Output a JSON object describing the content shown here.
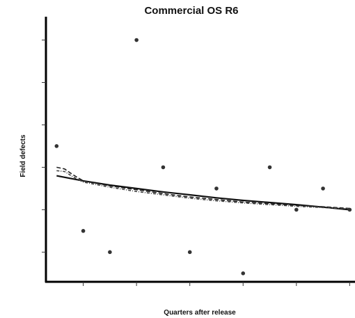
{
  "chart_data": {
    "type": "scatter",
    "title": "Commercial OS R6",
    "xlabel": "Quarters after release",
    "ylabel": "Field defects",
    "xlim": [
      0.6,
      12.2
    ],
    "ylim": [
      0.3,
      6.55
    ],
    "grid": false,
    "tick_labels_shown": false,
    "x_ticks": [
      2,
      4,
      6,
      8,
      10,
      12
    ],
    "y_ticks": [
      1,
      2,
      3,
      4,
      5,
      6
    ],
    "series": [
      {
        "kind": "points",
        "x": [
          1,
          2,
          3,
          4,
          5,
          6,
          7,
          8,
          9,
          10,
          11,
          12
        ],
        "y": [
          3.5,
          1.5,
          1.0,
          6.0,
          3.0,
          1.0,
          2.5,
          0.5,
          3.0,
          2.0,
          2.5,
          2.0
        ],
        "color": "#333333"
      },
      {
        "kind": "line",
        "style": "solid",
        "x": [
          1,
          2,
          3,
          4,
          5,
          6,
          7,
          8,
          9,
          10,
          11,
          12
        ],
        "y": [
          2.8,
          2.68,
          2.58,
          2.5,
          2.42,
          2.35,
          2.28,
          2.22,
          2.17,
          2.12,
          2.06,
          2.0
        ],
        "color": "#111111"
      },
      {
        "kind": "line",
        "style": "dashed",
        "x": [
          1,
          1.3,
          1.6,
          2,
          3,
          4,
          5,
          6,
          7,
          8,
          9,
          10,
          11,
          12
        ],
        "y": [
          3.0,
          2.96,
          2.83,
          2.68,
          2.56,
          2.47,
          2.38,
          2.3,
          2.24,
          2.18,
          2.14,
          2.1,
          2.07,
          2.03
        ],
        "color": "#222222"
      },
      {
        "kind": "line",
        "style": "dotdash",
        "x": [
          1,
          1.3,
          1.6,
          2,
          3,
          4,
          5,
          6,
          7,
          8,
          9,
          10,
          11,
          12
        ],
        "y": [
          2.92,
          2.9,
          2.78,
          2.65,
          2.53,
          2.43,
          2.35,
          2.27,
          2.21,
          2.16,
          2.12,
          2.08,
          2.05,
          2.02
        ],
        "color": "#444444"
      }
    ]
  }
}
